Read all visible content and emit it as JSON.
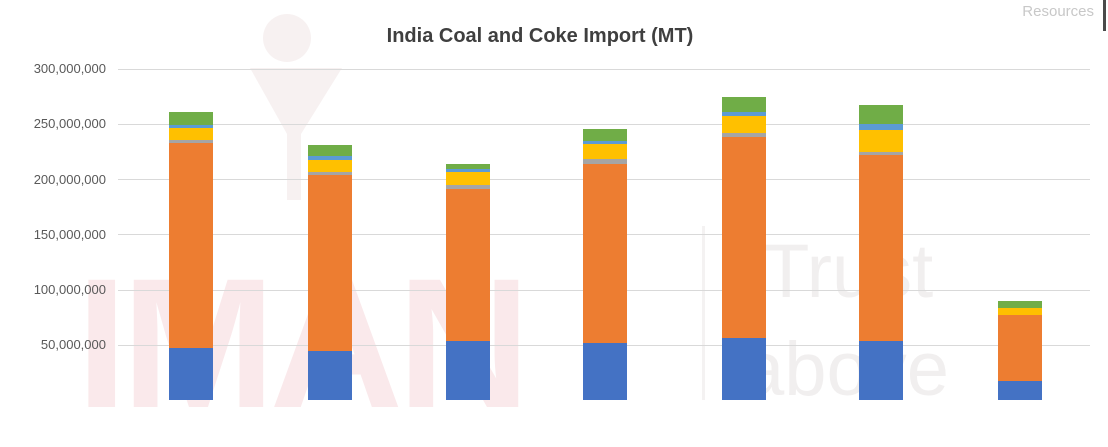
{
  "header": {
    "resources_label": "Resources"
  },
  "watermark": {
    "brand": "IMAN",
    "tagline_line1": "Trust",
    "tagline_line2": "above",
    "brand_color": "#fae9eb",
    "tagline_color": "#f1efef",
    "logo_color": "#f7f1f1"
  },
  "chart_data": {
    "type": "bar",
    "stacked": true,
    "title": "India Coal and Coke Import (MT)",
    "values_unit": "million MT",
    "legend": "none",
    "grid": true,
    "categories": [
      "",
      "",
      "",
      "",
      "",
      "",
      ""
    ],
    "series": [
      {
        "name": "series-1-blue",
        "color": "#4472C4",
        "values": [
          47.5,
          44.5,
          53.0,
          52.0,
          56.5,
          53.0,
          17.0
        ]
      },
      {
        "name": "series-2-orange",
        "color": "#ED7D31",
        "values": [
          185.0,
          159.0,
          138.0,
          161.5,
          181.5,
          169.0,
          59.5
        ]
      },
      {
        "name": "series-3-gray",
        "color": "#A5A5A5",
        "values": [
          2.5,
          2.5,
          3.5,
          4.5,
          3.5,
          2.5,
          0.0
        ]
      },
      {
        "name": "series-4-yellow",
        "color": "#FFC000",
        "values": [
          11.5,
          11.0,
          11.5,
          13.5,
          16.0,
          20.0,
          7.0
        ]
      },
      {
        "name": "series-5-light-blue",
        "color": "#5B9BD5",
        "values": [
          2.5,
          3.5,
          3.5,
          2.5,
          3.5,
          5.5,
          0.0
        ]
      },
      {
        "name": "series-6-green",
        "color": "#70AD47",
        "values": [
          12.0,
          10.0,
          4.5,
          11.0,
          13.5,
          17.0,
          6.5
        ]
      }
    ],
    "totals_million": [
      261.0,
      230.5,
      214.0,
      245.0,
      274.5,
      267.0,
      90.0
    ],
    "ylim": [
      0,
      300
    ],
    "y_tick_values": [
      300,
      250,
      200,
      150,
      100,
      50
    ],
    "y_tick_labels": [
      "300,000,000",
      "250,000,000",
      "200,000,000",
      "150,000,000",
      "100,000,000",
      "50,000,000"
    ]
  }
}
